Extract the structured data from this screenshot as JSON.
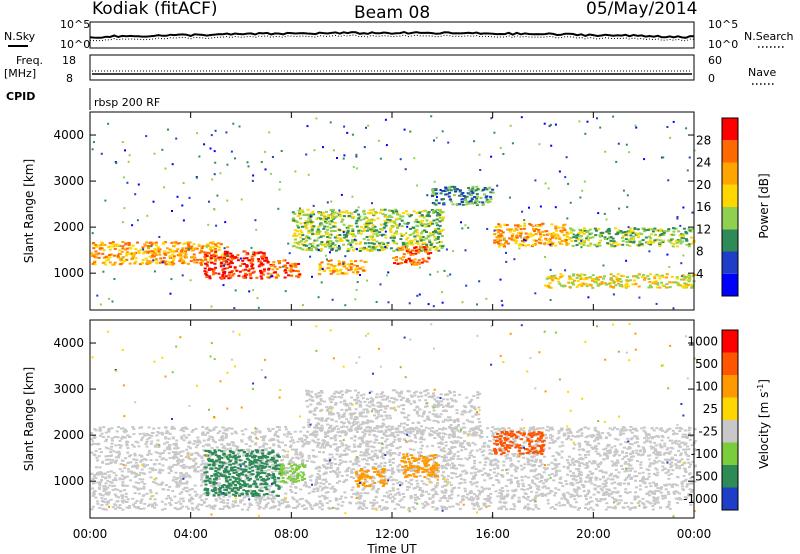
{
  "header": {
    "station": "Kodiak (fitACF)",
    "beam": "Beam 08",
    "date": "05/May/2014"
  },
  "side_labels": {
    "nsky": "N.Sky",
    "nsearch": "N.Search",
    "freq": "Freq.",
    "freq_unit": "[MHz]",
    "nave": "Nave",
    "cpid": "CPID",
    "cpid_value": "rbsp 200 RF"
  },
  "noise_axis": {
    "left_ticks": [
      "10^5",
      "10^0"
    ],
    "right_ticks": [
      "10^5",
      "10^0"
    ]
  },
  "freq_axis": {
    "left_ticks": [
      "18",
      "8"
    ],
    "right_ticks": [
      "60",
      "0"
    ]
  },
  "panels": {
    "power": {
      "ylabel": "Slant Range [km]",
      "yticks": [
        1000,
        2000,
        3000,
        4000
      ],
      "ylim": [
        200,
        4500
      ]
    },
    "velocity": {
      "ylabel": "Slant Range [km]",
      "yticks": [
        1000,
        2000,
        3000,
        4000
      ],
      "ylim": [
        200,
        4500
      ]
    }
  },
  "time_axis": {
    "ticks": [
      "00:00",
      "04:00",
      "08:00",
      "12:00",
      "16:00",
      "20:00",
      "00:00"
    ],
    "label": "Time UT"
  },
  "colorbars": {
    "power": {
      "label": "Power [dB]",
      "ticks": [
        "28",
        "24",
        "20",
        "16",
        "12",
        "8",
        "4"
      ],
      "colors": [
        "#0000ff",
        "#1e3ec8",
        "#2e8b57",
        "#8fd14f",
        "#ffd700",
        "#ffa500",
        "#ff6a00",
        "#ff0000"
      ]
    },
    "velocity": {
      "label": "Velocity [m s",
      "label_sup": "-1",
      "label_close": "]",
      "ticks": [
        "1000",
        "500",
        "100",
        "25",
        "-25",
        "-100",
        "-500",
        "-1000"
      ],
      "colors": [
        "#1e3ec8",
        "#2e8b57",
        "#7ccd3c",
        "#c8c8c8",
        "#ffd700",
        "#ff9900",
        "#ff5500",
        "#ff0000"
      ]
    }
  },
  "chart_data": {
    "type": "heatmap",
    "x_ticks_ut_hours": [
      0,
      4,
      8,
      12,
      16,
      20,
      24
    ],
    "xlim_ut_hours": [
      0,
      24
    ],
    "ylim_km": [
      200,
      4500
    ],
    "power_features": [
      {
        "t0": 0.0,
        "t1": 5.5,
        "r0": 1200,
        "r1": 1700,
        "level": 5
      },
      {
        "t0": 4.5,
        "t1": 7.0,
        "r0": 900,
        "r1": 1500,
        "level": 7
      },
      {
        "t0": 7.0,
        "t1": 8.3,
        "r0": 900,
        "r1": 1300,
        "level": 6
      },
      {
        "t0": 8.0,
        "t1": 14.0,
        "r0": 1500,
        "r1": 2400,
        "level": 3
      },
      {
        "t0": 13.5,
        "t1": 16.0,
        "r0": 2500,
        "r1": 2900,
        "level": 2
      },
      {
        "t0": 16.0,
        "t1": 19.0,
        "r0": 1600,
        "r1": 2100,
        "level": 5
      },
      {
        "t0": 9.0,
        "t1": 11.0,
        "r0": 1000,
        "r1": 1300,
        "level": 5
      },
      {
        "t0": 12.0,
        "t1": 13.5,
        "r0": 1200,
        "r1": 1600,
        "level": 6
      },
      {
        "t0": 18.0,
        "t1": 24.0,
        "r0": 700,
        "r1": 1000,
        "level": 4
      },
      {
        "t0": 19.0,
        "t1": 24.0,
        "r0": 1600,
        "r1": 2000,
        "level": 3
      }
    ],
    "velocity_features": [
      {
        "t0": 0.0,
        "t1": 24.0,
        "r0": 400,
        "r1": 2200,
        "class": "25"
      },
      {
        "t0": 4.5,
        "t1": 7.5,
        "r0": 700,
        "r1": 1700,
        "class": "500"
      },
      {
        "t0": 7.5,
        "t1": 8.5,
        "r0": 1000,
        "r1": 1400,
        "class": "100"
      },
      {
        "t0": 10.5,
        "t1": 11.7,
        "r0": 900,
        "r1": 1300,
        "class": "-100"
      },
      {
        "t0": 12.3,
        "t1": 13.8,
        "r0": 1100,
        "r1": 1600,
        "class": "-100"
      },
      {
        "t0": 16.0,
        "t1": 18.0,
        "r0": 1600,
        "r1": 2100,
        "class": "-500"
      },
      {
        "t0": 8.5,
        "t1": 15.5,
        "r0": 2000,
        "r1": 3000,
        "class": "25"
      }
    ]
  }
}
